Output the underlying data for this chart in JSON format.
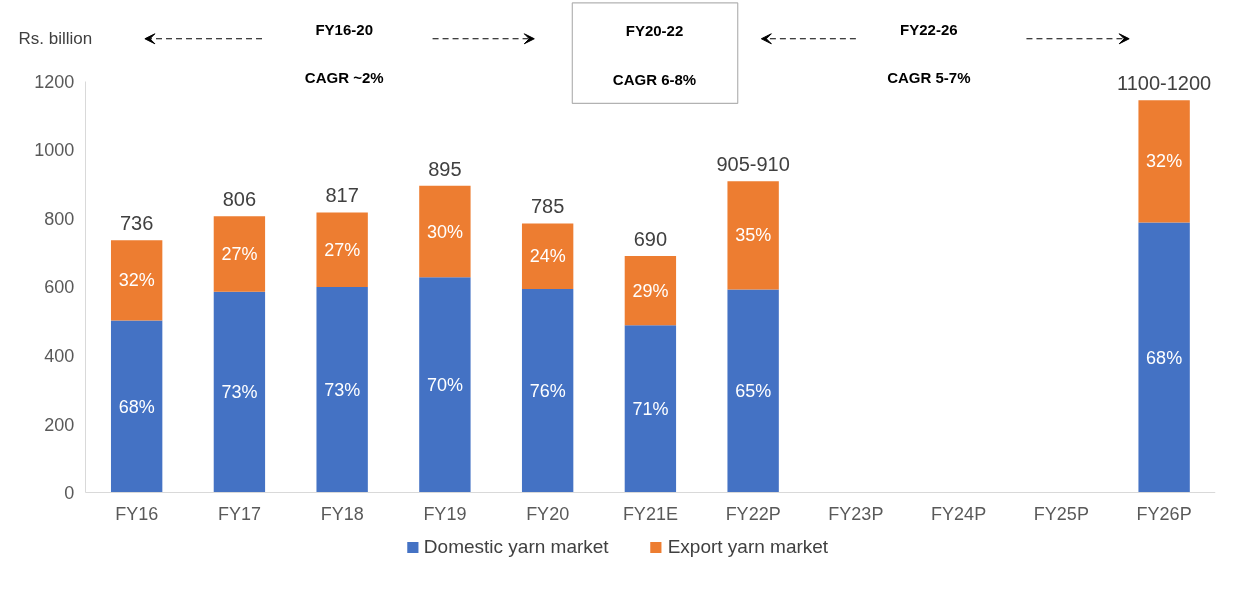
{
  "chart_data": {
    "type": "bar",
    "stacked": true,
    "ylabel": "Rs. billion",
    "categories": [
      "FY16",
      "FY17",
      "FY18",
      "FY19",
      "FY20",
      "FY21E",
      "FY22P",
      "FY23P",
      "FY24P",
      "FY25P",
      "FY26P"
    ],
    "series": [
      {
        "name": "Domestic yarn market",
        "color": "#4472c4",
        "values": [
          502,
          586,
          600,
          628,
          594,
          488,
          592,
          null,
          null,
          null,
          788
        ]
      },
      {
        "name": "Export yarn market",
        "color": "#ed7d31",
        "values": [
          234,
          220,
          217,
          267,
          191,
          202,
          316,
          null,
          null,
          null,
          356
        ]
      }
    ],
    "totals": [
      "736",
      "806",
      "817",
      "895",
      "785",
      "690",
      "905-910",
      null,
      null,
      null,
      "1100-1200"
    ],
    "ylim": [
      0,
      1200
    ],
    "yticks": [
      0,
      200,
      400,
      600,
      800,
      1000,
      1200
    ],
    "grid": false,
    "legend": "bottom",
    "annotations": [
      "FY16-20",
      "CAGR ~2%",
      "FY20-22",
      "CAGR 6-8%",
      "FY22-26",
      "CAGR 5-7%",
      "68%",
      "73%",
      "73%",
      "70%",
      "76%",
      "71%",
      "65%",
      "68%",
      "32%",
      "27%",
      "27%",
      "30%",
      "24%",
      "29%",
      "35%",
      "32%"
    ]
  }
}
